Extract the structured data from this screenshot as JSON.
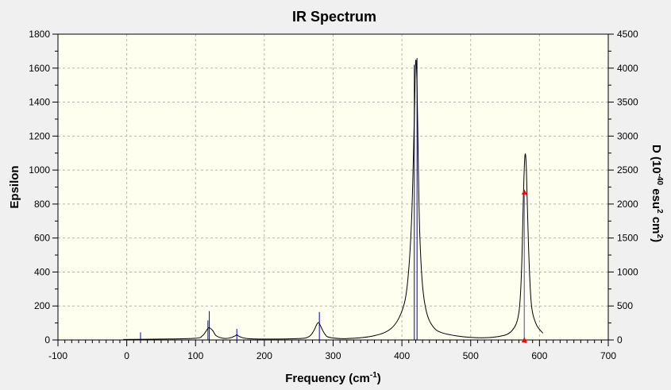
{
  "chart_data": {
    "type": "line",
    "title": "IR Spectrum",
    "xlabel": "Frequency (cm",
    "xlabel_sup": "-1",
    "xlabel_end": ")",
    "ylabel_left": "Epsilon",
    "ylabel_right_parts": [
      "D (10",
      "-40",
      " esu",
      "2",
      " cm",
      "2",
      ")"
    ],
    "xlim": [
      -100,
      700
    ],
    "ylim_left": [
      0,
      1800
    ],
    "ylim_right": [
      0,
      4500
    ],
    "x_ticks": [
      -100,
      0,
      100,
      200,
      300,
      400,
      500,
      600,
      700
    ],
    "y_left_ticks": [
      0,
      200,
      400,
      600,
      800,
      1000,
      1200,
      1400,
      1600,
      1800
    ],
    "y_right_ticks": [
      0,
      500,
      1000,
      1500,
      2000,
      2500,
      3000,
      3500,
      4000,
      4500
    ],
    "grid": true,
    "colors": {
      "background": "#f0f0f0",
      "plot_bg": "#fffff0",
      "grid": "#b4b4b4",
      "curve": "#000000",
      "sticks": "#0000cc",
      "marker": "#ff0000",
      "marker_line": "#888888"
    },
    "spectrum_curve": {
      "x": [
        -5,
        50,
        100,
        110,
        115,
        118,
        120,
        125,
        130,
        140,
        150,
        158,
        160,
        165,
        175,
        200,
        250,
        265,
        272,
        276,
        279,
        282,
        288,
        295,
        320,
        360,
        385,
        400,
        408,
        414,
        418,
        420,
        422,
        424,
        426,
        430,
        436,
        445,
        460,
        500,
        540,
        560,
        570,
        574,
        577,
        579,
        581,
        584,
        588,
        595,
        605
      ],
      "y": [
        3,
        5,
        10,
        25,
        50,
        68,
        72,
        55,
        25,
        10,
        12,
        25,
        30,
        18,
        8,
        5,
        8,
        20,
        55,
        90,
        102,
        80,
        35,
        15,
        8,
        25,
        70,
        170,
        330,
        700,
        1300,
        1640,
        1500,
        1000,
        620,
        320,
        160,
        80,
        40,
        15,
        20,
        55,
        160,
        420,
        900,
        1090,
        1000,
        560,
        220,
        95,
        40
      ]
    },
    "sticks": {
      "x": [
        20,
        118,
        120,
        160,
        280,
        418,
        422,
        578
      ],
      "epsilon": [
        45,
        115,
        170,
        65,
        165,
        1620,
        1660,
        870
      ]
    },
    "markers": [
      {
        "x": 578,
        "epsilon": 870
      },
      {
        "x": 578,
        "epsilon": 0
      }
    ]
  }
}
